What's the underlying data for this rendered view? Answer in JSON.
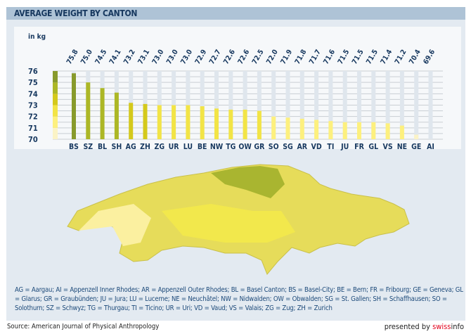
{
  "chart_data": {
    "type": "bar",
    "title": "AVERAGE WEIGHT BY CANTON",
    "ylabel": "in kg",
    "ylim": [
      70,
      76
    ],
    "yticks": [
      70,
      71,
      72,
      73,
      74,
      75,
      76
    ],
    "grid": true,
    "categories": [
      "BS",
      "SZ",
      "BL",
      "SH",
      "AG",
      "ZH",
      "ZG",
      "UR",
      "LU",
      "BE",
      "NW",
      "TG",
      "OW",
      "GR",
      "SO",
      "SG",
      "AR",
      "VD",
      "TI",
      "JU",
      "FR",
      "GL",
      "VS",
      "NE",
      "GE",
      "AI"
    ],
    "values": [
      75.8,
      75.0,
      74.5,
      74.1,
      73.2,
      73.1,
      73.0,
      73.0,
      73.0,
      72.9,
      72.7,
      72.6,
      72.6,
      72.5,
      72.0,
      71.9,
      71.8,
      71.7,
      71.6,
      71.5,
      71.5,
      71.5,
      71.4,
      71.2,
      70.4,
      69.6
    ],
    "value_labels": [
      "75.8",
      "75.0",
      "74.5",
      "74.1",
      "73.2",
      "73.1",
      "73.0",
      "73.0",
      "73.0",
      "72.9",
      "72.7",
      "72.6",
      "72.6",
      "72.5",
      "72.0",
      "71.9",
      "71.8",
      "71.7",
      "71.6",
      "71.5",
      "71.5",
      "71.5",
      "71.4",
      "71.2",
      "70.4",
      "69.6"
    ],
    "color_scale": [
      "#fbf3c6",
      "#fdf07e",
      "#f2e446",
      "#d4c91c",
      "#acb726",
      "#889a2c"
    ]
  },
  "legend_text": "AG = Aargau; AI = Appenzell Inner Rhodes; AR = Appenzell Outer Rhodes; BL = Basel Canton; BS = Basel-City; BE = Bern; FR = Fribourg; GE = Geneva; GL = Glarus; GR = Graubünden; JU = Jura; LU = Lucerne; NE = Neuchâtel; NW = Nidwalden; OW = Obwalden; SG = St. Gallen; SH = Schaffhausen; SO = Solothurn; SZ = Schwyz; TG = Thurgau; TI = Ticino; UR = Uri; VD = Vaud; VS = Valais; ZG = Zug; ZH = Zurich",
  "footer": {
    "source": "Source: American Journal of Physical Anthropology",
    "presented_by": "presented by ",
    "brand_red": "swiss",
    "brand_dark": "info"
  }
}
